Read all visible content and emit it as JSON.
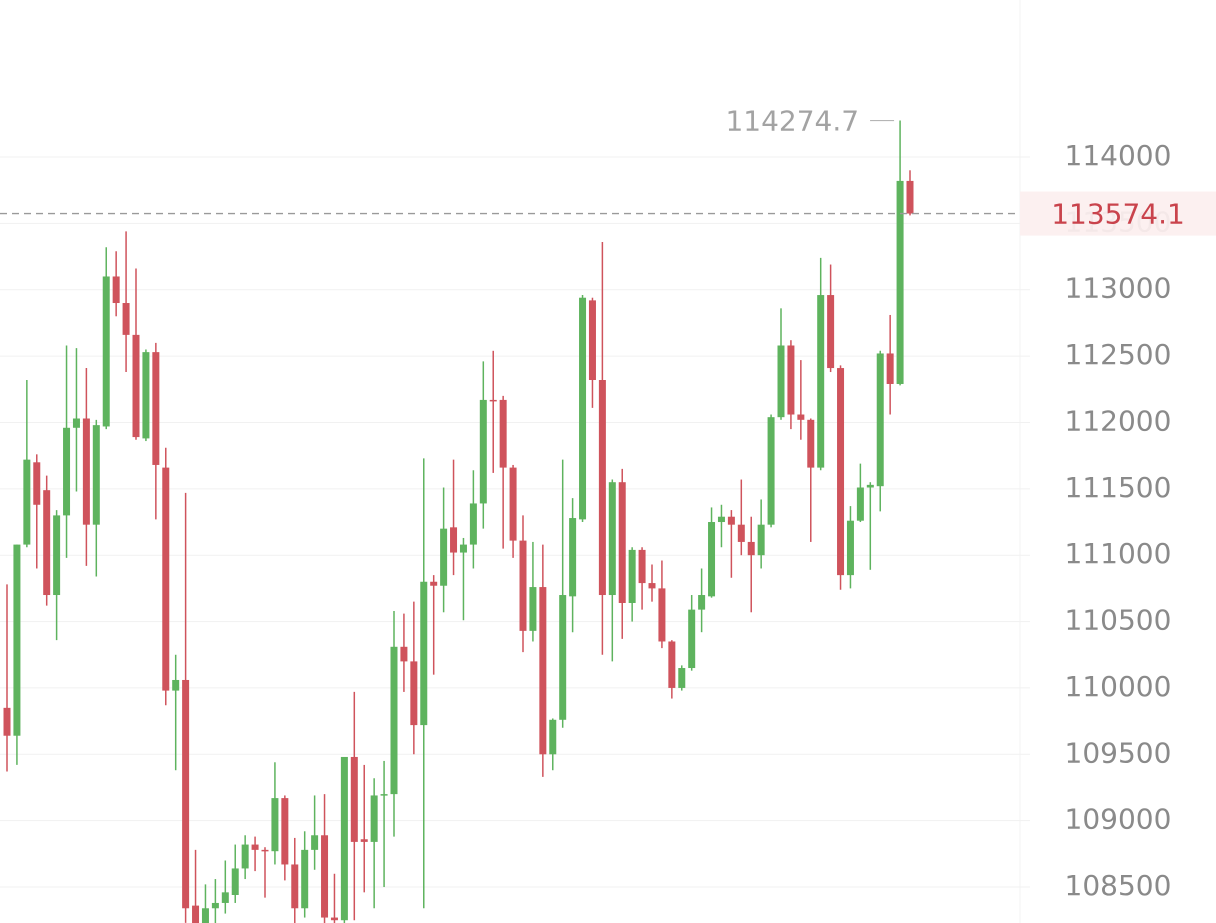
{
  "chart_data": {
    "type": "candlestick",
    "up_color": "#5eb35e",
    "down_color": "#cf535c",
    "grid": true,
    "ylim": [
      108229,
      115183
    ],
    "yticks": [
      108500,
      109000,
      109500,
      110000,
      110500,
      111000,
      111500,
      112000,
      112500,
      113000,
      113500,
      114000
    ],
    "open": [
      109850,
      109640,
      111080,
      111700,
      111490,
      110700,
      111300,
      111960,
      112030,
      111230,
      111970,
      113100,
      112900,
      112660,
      111880,
      112530,
      111660,
      109980,
      110060,
      108360,
      108200,
      108340,
      108380,
      108440,
      108640,
      108820,
      108780,
      108770,
      109170,
      108670,
      108340,
      108780,
      108890,
      108270,
      108250,
      109480,
      108860,
      108840,
      109190,
      109200,
      110310,
      110200,
      109720,
      110800,
      110770,
      111210,
      111020,
      111080,
      111390,
      112170,
      112170,
      111660,
      111110,
      110430,
      110760,
      109500,
      109760,
      110690,
      111270,
      112920,
      112320,
      110700,
      111550,
      110640,
      111040,
      110790,
      110750,
      110350,
      110000,
      110150,
      110590,
      110690,
      111250,
      111290,
      111230,
      111100,
      111000,
      111230,
      112040,
      112580,
      112060,
      112020,
      111660,
      112960,
      112410,
      110850,
      111260,
      111510,
      111520,
      112520,
      112290,
      113820
    ],
    "high": [
      110780,
      111080,
      112320,
      111760,
      111600,
      111340,
      112580,
      112560,
      112410,
      112020,
      113320,
      113290,
      113440,
      113160,
      112550,
      112600,
      111810,
      110250,
      111470,
      108780,
      108520,
      108560,
      108700,
      108820,
      108890,
      108880,
      108800,
      109440,
      109190,
      108870,
      108920,
      109190,
      109200,
      108600,
      109480,
      109970,
      109420,
      109320,
      109450,
      110580,
      110560,
      110650,
      111730,
      110850,
      111510,
      111720,
      111130,
      111640,
      112460,
      112540,
      112200,
      111680,
      111300,
      111100,
      111080,
      109770,
      111720,
      111430,
      112960,
      112940,
      113360,
      111570,
      111650,
      111060,
      111060,
      110930,
      110960,
      110360,
      110170,
      110700,
      110900,
      111360,
      111380,
      111340,
      111570,
      111290,
      111420,
      112060,
      112860,
      112620,
      112470,
      112030,
      113240,
      113190,
      112430,
      111370,
      111690,
      111550,
      112540,
      112810,
      114274.7,
      113900
    ],
    "low": [
      109370,
      109420,
      111060,
      110900,
      110620,
      110360,
      110980,
      111480,
      110920,
      110840,
      111950,
      112800,
      112380,
      111870,
      111860,
      111270,
      109870,
      109380,
      108230,
      108100,
      108100,
      108200,
      108300,
      108380,
      108560,
      108620,
      108420,
      108670,
      108550,
      108150,
      108270,
      108630,
      108100,
      108150,
      108100,
      108250,
      108460,
      108340,
      108500,
      108880,
      109970,
      109500,
      108340,
      110100,
      110570,
      110850,
      110510,
      110900,
      111200,
      111620,
      111050,
      110980,
      110270,
      110350,
      109330,
      109380,
      109700,
      110420,
      111250,
      112110,
      110250,
      110200,
      110370,
      110500,
      110590,
      110650,
      110300,
      109920,
      109980,
      110130,
      110420,
      110680,
      111060,
      110830,
      111000,
      110570,
      110900,
      111210,
      112020,
      111950,
      111870,
      111100,
      111640,
      112380,
      110740,
      110750,
      111250,
      110890,
      111330,
      112060,
      112280,
      113560
    ],
    "close": [
      109640,
      111080,
      111720,
      111380,
      110700,
      111300,
      111960,
      112030,
      111230,
      111980,
      113100,
      112900,
      112660,
      111890,
      112530,
      111680,
      109980,
      110060,
      108340,
      108200,
      108340,
      108380,
      108460,
      108640,
      108820,
      108780,
      108770,
      109170,
      108670,
      108340,
      108780,
      108890,
      108270,
      108250,
      109480,
      108840,
      108840,
      109190,
      109200,
      110310,
      110200,
      109720,
      110800,
      110770,
      111200,
      111020,
      111080,
      111390,
      112170,
      112160,
      111660,
      111110,
      110430,
      110760,
      109500,
      109760,
      110700,
      111280,
      112940,
      112320,
      110700,
      111550,
      110640,
      111040,
      110790,
      110750,
      110350,
      110000,
      110150,
      110590,
      110700,
      111250,
      111290,
      111230,
      111100,
      111000,
      111230,
      112040,
      112580,
      112060,
      112020,
      111660,
      112960,
      112410,
      110850,
      111260,
      111510,
      111530,
      112520,
      112290,
      113820,
      113574.1
    ]
  }
}
